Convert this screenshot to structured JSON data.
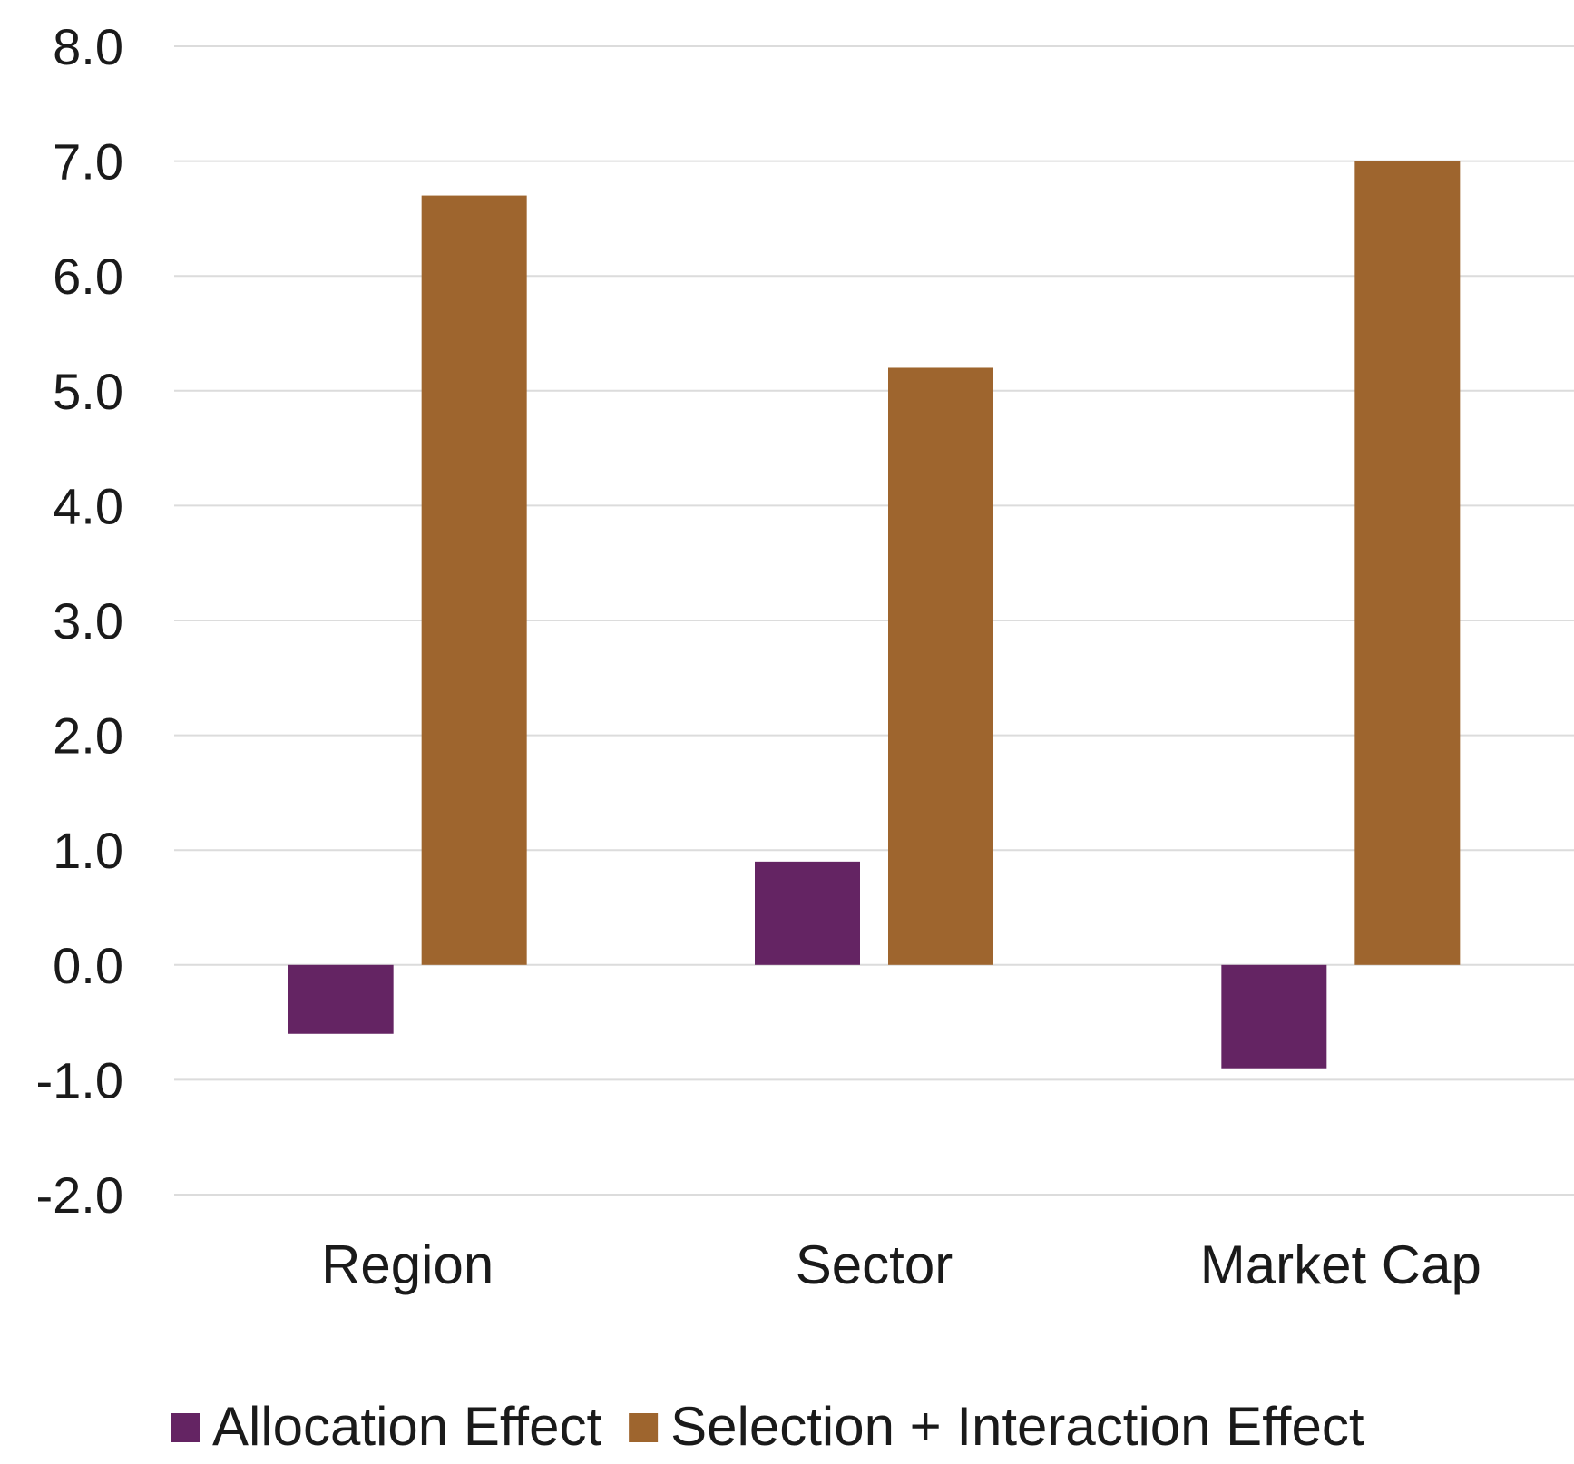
{
  "chart_data": {
    "type": "bar",
    "categories": [
      "Region",
      "Sector",
      "Market Cap"
    ],
    "series": [
      {
        "name": "Allocation Effect",
        "values": [
          -0.6,
          0.9,
          -0.9
        ],
        "color": "#642463"
      },
      {
        "name": "Selection + Interaction Effect",
        "values": [
          6.7,
          5.2,
          7.0
        ],
        "color": "#9E652E"
      }
    ],
    "ylim": [
      -2.0,
      8.0
    ],
    "yticks": [
      "8.0",
      "7.0",
      "6.0",
      "5.0",
      "4.0",
      "3.0",
      "2.0",
      "1.0",
      "0.0",
      "-1.0",
      "-2.0"
    ],
    "title": "",
    "xlabel": "",
    "ylabel": "",
    "grid": true,
    "legend": "bottom"
  }
}
